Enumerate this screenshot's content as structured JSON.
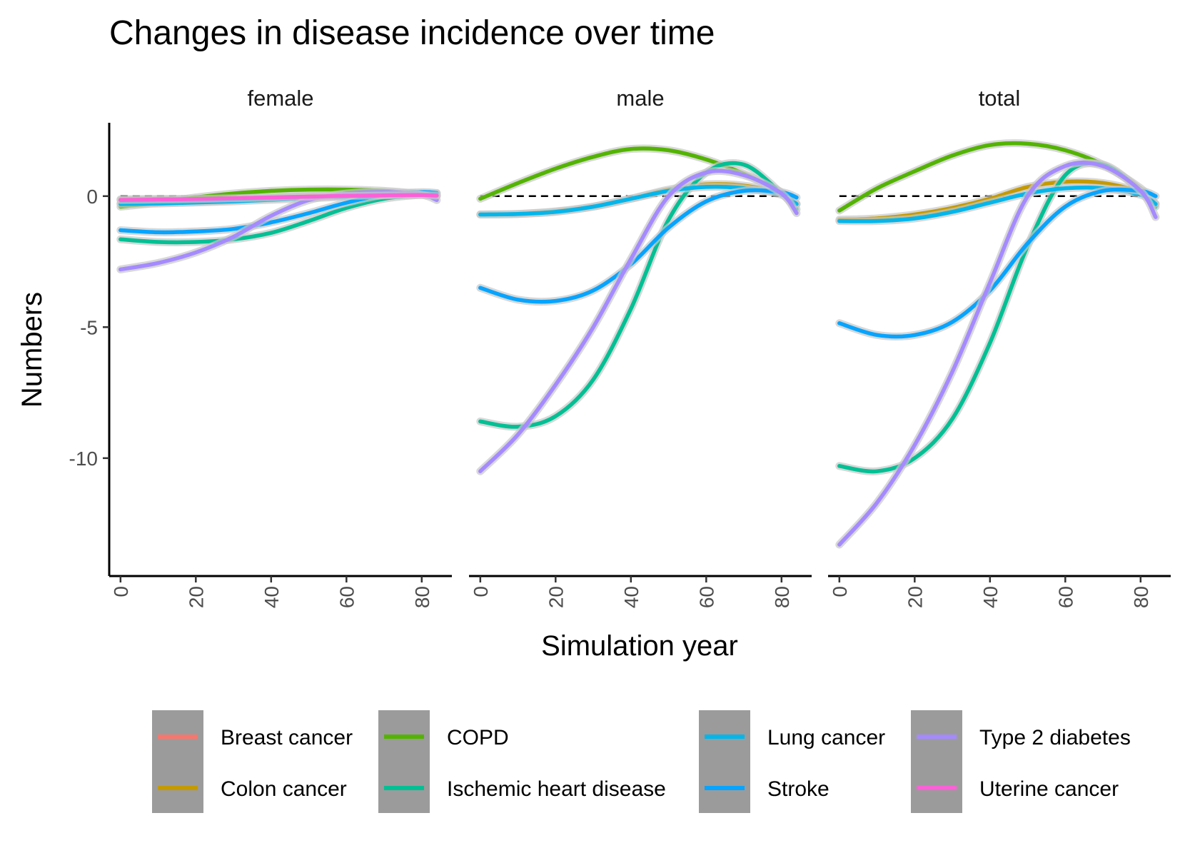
{
  "chart_data": {
    "type": "line",
    "title": "Changes in disease incidence over time",
    "xlabel": "Simulation year",
    "ylabel": "Numbers",
    "facets": [
      "female",
      "male",
      "total"
    ],
    "xlim": [
      -3,
      88
    ],
    "ylim": [
      -14.5,
      2.8
    ],
    "x_ticks": [
      "0",
      "20",
      "40",
      "60",
      "80"
    ],
    "y_ticks": [
      {
        "value": 0,
        "label": "0"
      },
      {
        "value": -5,
        "label": "-5"
      },
      {
        "value": -10,
        "label": "-10"
      }
    ],
    "reference_line": {
      "y": 0,
      "style": "dashed"
    },
    "x": [
      0,
      10,
      20,
      30,
      40,
      50,
      60,
      70,
      80,
      84
    ],
    "series": [
      {
        "name": "Breast cancer",
        "color": "#F8766D",
        "values": {
          "female": [
            -0.12,
            -0.11,
            -0.1,
            -0.08,
            -0.05,
            -0.02,
            0.01,
            0.04,
            0.05,
            0.02
          ],
          "male": null,
          "total": null
        }
      },
      {
        "name": "Colon cancer",
        "color": "#C49A00",
        "values": {
          "female": [
            -0.28,
            -0.25,
            -0.22,
            -0.16,
            -0.08,
            0.0,
            0.05,
            0.08,
            0.06,
            0.02
          ],
          "male": [
            -0.7,
            -0.68,
            -0.58,
            -0.4,
            -0.1,
            0.25,
            0.45,
            0.4,
            0.1,
            -0.3
          ],
          "total": [
            -0.9,
            -0.85,
            -0.7,
            -0.45,
            -0.1,
            0.35,
            0.55,
            0.5,
            0.15,
            -0.3
          ]
        }
      },
      {
        "name": "COPD",
        "color": "#53B400",
        "values": {
          "female": [
            -0.4,
            -0.25,
            -0.05,
            0.1,
            0.2,
            0.25,
            0.25,
            0.2,
            0.08,
            0.0
          ],
          "male": [
            -0.1,
            0.5,
            1.05,
            1.5,
            1.8,
            1.75,
            1.4,
            0.85,
            0.15,
            -0.3
          ],
          "total": [
            -0.55,
            0.3,
            0.95,
            1.55,
            1.95,
            2.0,
            1.75,
            1.2,
            0.3,
            -0.3
          ]
        }
      },
      {
        "name": "Ischemic heart disease",
        "color": "#00C094",
        "values": {
          "female": [
            -1.65,
            -1.75,
            -1.75,
            -1.65,
            -1.4,
            -0.95,
            -0.45,
            -0.1,
            0.05,
            0.02
          ],
          "male": [
            -8.6,
            -8.8,
            -8.4,
            -7.0,
            -4.3,
            -0.9,
            0.9,
            1.2,
            0.1,
            -0.5
          ],
          "total": [
            -10.3,
            -10.5,
            -10.0,
            -8.5,
            -5.6,
            -1.9,
            0.8,
            1.2,
            0.2,
            -0.4
          ]
        }
      },
      {
        "name": "Lung cancer",
        "color": "#00B6EB",
        "values": {
          "female": [
            -0.3,
            -0.28,
            -0.24,
            -0.2,
            -0.14,
            -0.08,
            -0.02,
            0.05,
            0.1,
            0.1
          ],
          "male": [
            -0.7,
            -0.68,
            -0.6,
            -0.4,
            -0.1,
            0.2,
            0.35,
            0.3,
            0.05,
            -0.3
          ],
          "total": [
            -0.95,
            -0.95,
            -0.85,
            -0.6,
            -0.25,
            0.1,
            0.3,
            0.3,
            0.05,
            -0.3
          ]
        }
      },
      {
        "name": "Stroke",
        "color": "#06A4FF",
        "values": {
          "female": [
            -1.3,
            -1.38,
            -1.35,
            -1.25,
            -1.0,
            -0.65,
            -0.25,
            0.05,
            0.15,
            0.12
          ],
          "male": [
            -3.5,
            -3.95,
            -4.0,
            -3.6,
            -2.6,
            -1.2,
            -0.2,
            0.2,
            0.15,
            -0.05
          ],
          "total": [
            -4.85,
            -5.3,
            -5.3,
            -4.8,
            -3.6,
            -1.8,
            -0.4,
            0.2,
            0.2,
            0.0
          ]
        }
      },
      {
        "name": "Type 2 diabetes",
        "color": "#A58AFF",
        "values": {
          "female": [
            -2.8,
            -2.55,
            -2.15,
            -1.55,
            -0.75,
            -0.15,
            0.1,
            0.15,
            0.05,
            -0.15
          ],
          "male": [
            -10.5,
            -9.1,
            -7.2,
            -5.0,
            -2.4,
            0.0,
            0.9,
            0.8,
            0.1,
            -0.65
          ],
          "total": [
            -13.3,
            -11.7,
            -9.5,
            -6.7,
            -3.3,
            0.0,
            1.15,
            1.15,
            0.2,
            -0.8
          ]
        }
      },
      {
        "name": "Uterine cancer",
        "color": "#FB61D7",
        "values": {
          "female": [
            -0.15,
            -0.13,
            -0.11,
            -0.08,
            -0.05,
            -0.02,
            0.01,
            0.03,
            0.04,
            0.02
          ],
          "male": null,
          "total": null
        }
      }
    ],
    "grid": false,
    "legend": {
      "placement": "bottom",
      "columns": [
        [
          "Breast cancer",
          "Colon cancer"
        ],
        [
          "COPD",
          "Ischemic heart disease"
        ],
        [
          "Lung cancer",
          "Stroke"
        ],
        [
          "Type 2 diabetes",
          "Uterine cancer"
        ]
      ]
    }
  }
}
